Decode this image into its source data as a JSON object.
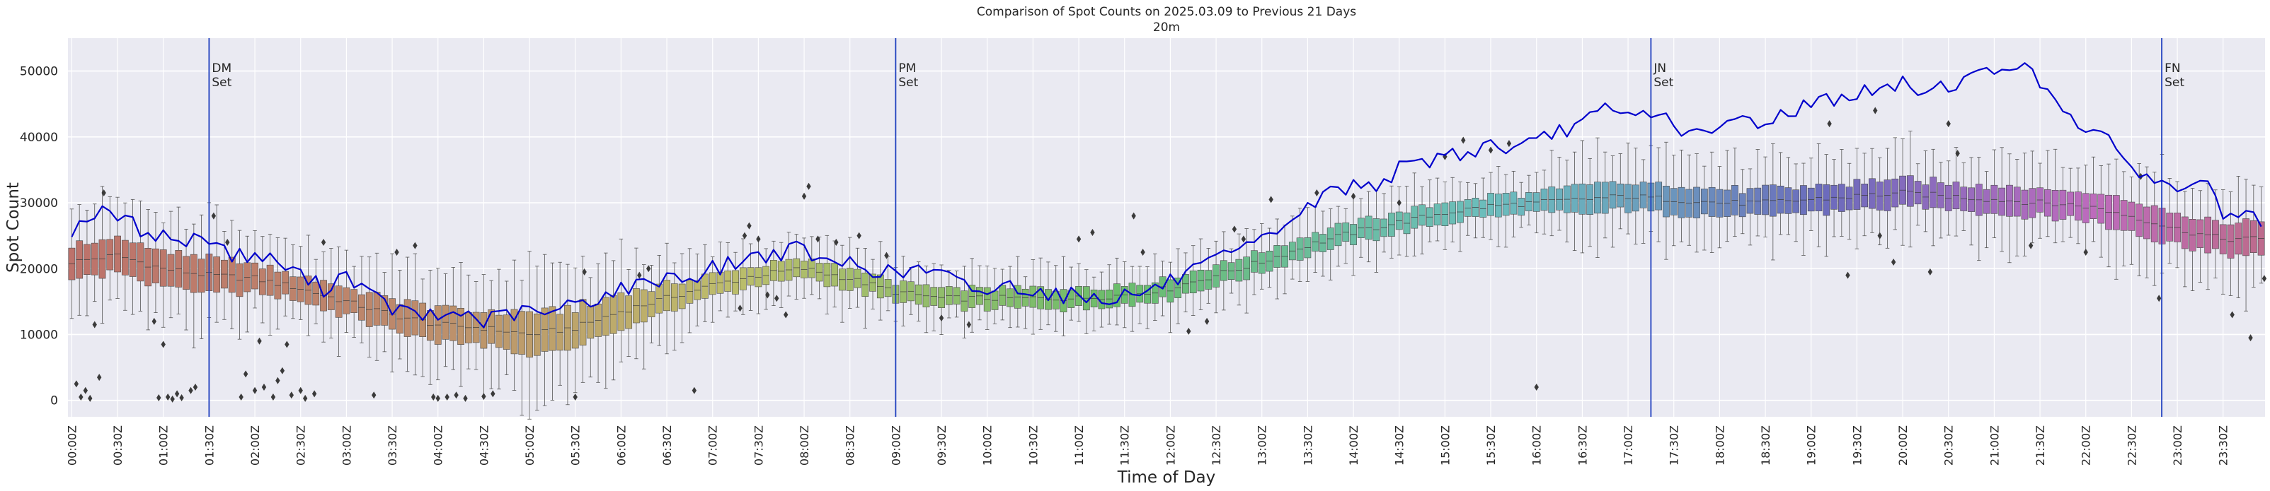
{
  "chart_data": {
    "type": "box",
    "title": "Comparison of Spot Counts on 2025.03.09 to Previous 21 Days",
    "subtitle": "20m",
    "xlabel": "Time of Day",
    "ylabel": "Spot Count",
    "ylim": [
      -2500,
      55000
    ],
    "yticks": [
      0,
      10000,
      20000,
      30000,
      40000,
      50000
    ],
    "grid": true,
    "n_bins": 288,
    "bin_minutes": 5,
    "xtick_every_bins": 6,
    "xtick_labels": [
      "00:00Z",
      "00:30Z",
      "01:00Z",
      "01:30Z",
      "02:00Z",
      "02:30Z",
      "03:00Z",
      "03:30Z",
      "04:00Z",
      "04:30Z",
      "05:00Z",
      "05:30Z",
      "06:00Z",
      "06:30Z",
      "07:00Z",
      "07:30Z",
      "08:00Z",
      "08:30Z",
      "09:00Z",
      "09:30Z",
      "10:00Z",
      "10:30Z",
      "11:00Z",
      "11:30Z",
      "12:00Z",
      "12:30Z",
      "13:00Z",
      "13:30Z",
      "14:00Z",
      "14:30Z",
      "15:00Z",
      "15:30Z",
      "16:00Z",
      "16:30Z",
      "17:00Z",
      "17:30Z",
      "18:00Z",
      "18:30Z",
      "19:00Z",
      "19:30Z",
      "20:00Z",
      "20:30Z",
      "21:00Z",
      "21:30Z",
      "22:00Z",
      "22:30Z",
      "23:00Z",
      "23:30Z"
    ],
    "box_median_profile": {
      "hours": [
        0,
        0.5,
        1,
        1.5,
        2,
        2.5,
        3,
        3.5,
        4,
        4.5,
        5,
        5.5,
        6,
        6.5,
        7,
        7.5,
        8,
        8.5,
        9,
        9.5,
        10,
        10.5,
        11,
        11.5,
        12,
        12.5,
        13,
        13.5,
        14,
        14.5,
        15,
        15.5,
        16,
        16.5,
        17,
        17.5,
        18,
        18.5,
        19,
        19.5,
        20,
        20.5,
        21,
        21.5,
        22,
        22.5,
        23,
        23.5,
        24
      ],
      "median": [
        21000,
        22000,
        20000,
        19000,
        18500,
        17000,
        15000,
        13000,
        11500,
        11000,
        10000,
        11000,
        13500,
        15500,
        17500,
        19000,
        20000,
        18500,
        16500,
        15500,
        15500,
        15500,
        15500,
        16000,
        17000,
        19000,
        21000,
        23500,
        25500,
        27000,
        28500,
        29500,
        30000,
        30500,
        31000,
        30500,
        30000,
        30000,
        30500,
        31000,
        31500,
        31000,
        30500,
        30000,
        29500,
        28000,
        26000,
        24500,
        24500
      ],
      "iqr_halfwidth": [
        2500,
        2500,
        2500,
        2500,
        2000,
        2000,
        2000,
        2500,
        2500,
        2500,
        3000,
        3000,
        2500,
        2000,
        1500,
        1500,
        1500,
        1500,
        1500,
        1500,
        1500,
        1500,
        1500,
        1500,
        1500,
        1500,
        1500,
        1500,
        1500,
        1500,
        1500,
        1500,
        1500,
        2000,
        2000,
        2000,
        2000,
        2000,
        2000,
        2000,
        2000,
        2000,
        2000,
        2000,
        2000,
        2500,
        2500,
        2500,
        2500
      ]
    },
    "current_day_series": {
      "name": "2025.03.09",
      "color": "#0000cc",
      "hours": [
        0,
        0.25,
        0.5,
        0.75,
        1,
        1.25,
        1.5,
        1.75,
        2,
        2.25,
        2.5,
        2.75,
        3,
        3.25,
        3.5,
        3.75,
        4,
        4.25,
        4.5,
        4.75,
        5,
        5.25,
        5.5,
        5.75,
        6,
        6.25,
        6.5,
        6.75,
        7,
        7.25,
        7.5,
        7.75,
        8,
        8.25,
        8.5,
        8.75,
        9,
        9.25,
        9.5,
        9.75,
        10,
        10.25,
        10.5,
        10.75,
        11,
        11.25,
        11.5,
        11.75,
        12,
        12.25,
        12.5,
        12.75,
        13,
        13.25,
        13.5,
        13.75,
        14,
        14.25,
        14.5,
        14.75,
        15,
        15.25,
        15.5,
        15.75,
        16,
        16.25,
        16.5,
        16.75,
        17,
        17.25,
        17.5,
        17.75,
        18,
        18.25,
        18.5,
        18.75,
        19,
        19.25,
        19.5,
        19.75,
        20,
        20.25,
        20.5,
        20.75,
        21,
        21.25,
        21.5,
        21.75,
        22,
        22.25,
        22.5,
        22.75,
        23,
        23.25,
        23.5,
        23.75,
        24
      ],
      "values": [
        26000,
        28500,
        28000,
        26000,
        25000,
        24000,
        25000,
        22000,
        22000,
        21000,
        19000,
        17000,
        19500,
        16000,
        14000,
        13000,
        12500,
        13500,
        12000,
        13000,
        13500,
        13000,
        15000,
        15500,
        17000,
        17500,
        19000,
        18500,
        20000,
        21000,
        22000,
        22500,
        23000,
        20500,
        21000,
        20000,
        19000,
        20000,
        19000,
        17500,
        16500,
        17500,
        17000,
        16000,
        16000,
        15500,
        16000,
        16500,
        18000,
        19500,
        21000,
        22500,
        24000,
        27000,
        29000,
        32000,
        32500,
        33000,
        35000,
        36000,
        37500,
        37500,
        39000,
        38000,
        39000,
        41000,
        42000,
        44000,
        43000,
        44000,
        42000,
        40000,
        41000,
        43000,
        42000,
        44000,
        45000,
        46000,
        46500,
        47000,
        48000,
        47000,
        48000,
        49000,
        50000,
        51500,
        48000,
        45000,
        41000,
        39000,
        36000,
        33000,
        32000,
        34000,
        28500,
        27500,
        27000
      ]
    },
    "vertical_lines": [
      {
        "hour": 1.5,
        "label": "DM\nSet"
      },
      {
        "hour": 9.0,
        "label": "PM\nSet"
      },
      {
        "hour": 17.25,
        "label": "JN\nSet"
      },
      {
        "hour": 22.83,
        "label": "FN\nSet"
      }
    ],
    "outliers": [
      {
        "hour": 0.05,
        "value": 2500
      },
      {
        "hour": 0.1,
        "value": 500
      },
      {
        "hour": 0.15,
        "value": 1500
      },
      {
        "hour": 0.2,
        "value": 300
      },
      {
        "hour": 0.25,
        "value": 11500
      },
      {
        "hour": 0.3,
        "value": 3500
      },
      {
        "hour": 0.35,
        "value": 31500
      },
      {
        "hour": 0.9,
        "value": 12000
      },
      {
        "hour": 0.95,
        "value": 400
      },
      {
        "hour": 1.0,
        "value": 8500
      },
      {
        "hour": 1.05,
        "value": 500
      },
      {
        "hour": 1.1,
        "value": 200
      },
      {
        "hour": 1.15,
        "value": 1000
      },
      {
        "hour": 1.2,
        "value": 400
      },
      {
        "hour": 1.3,
        "value": 1500
      },
      {
        "hour": 1.35,
        "value": 2000
      },
      {
        "hour": 1.55,
        "value": 28000
      },
      {
        "hour": 1.7,
        "value": 24000
      },
      {
        "hour": 1.85,
        "value": 500
      },
      {
        "hour": 1.9,
        "value": 4000
      },
      {
        "hour": 2.0,
        "value": 1500
      },
      {
        "hour": 2.05,
        "value": 9000
      },
      {
        "hour": 2.1,
        "value": 2000
      },
      {
        "hour": 2.2,
        "value": 500
      },
      {
        "hour": 2.25,
        "value": 3000
      },
      {
        "hour": 2.3,
        "value": 4500
      },
      {
        "hour": 2.35,
        "value": 8500
      },
      {
        "hour": 2.4,
        "value": 800
      },
      {
        "hour": 2.5,
        "value": 1500
      },
      {
        "hour": 2.55,
        "value": 300
      },
      {
        "hour": 2.65,
        "value": 1000
      },
      {
        "hour": 2.75,
        "value": 24000
      },
      {
        "hour": 3.3,
        "value": 800
      },
      {
        "hour": 3.55,
        "value": 22500
      },
      {
        "hour": 3.75,
        "value": 23500
      },
      {
        "hour": 3.95,
        "value": 500
      },
      {
        "hour": 4.0,
        "value": 300
      },
      {
        "hour": 4.1,
        "value": 500
      },
      {
        "hour": 4.2,
        "value": 800
      },
      {
        "hour": 4.3,
        "value": 300
      },
      {
        "hour": 4.5,
        "value": 600
      },
      {
        "hour": 4.6,
        "value": 1000
      },
      {
        "hour": 5.5,
        "value": 500
      },
      {
        "hour": 5.6,
        "value": 19500
      },
      {
        "hour": 6.2,
        "value": 19000
      },
      {
        "hour": 6.3,
        "value": 20000
      },
      {
        "hour": 6.8,
        "value": 1500
      },
      {
        "hour": 7.3,
        "value": 14000
      },
      {
        "hour": 7.35,
        "value": 25000
      },
      {
        "hour": 7.4,
        "value": 26500
      },
      {
        "hour": 7.5,
        "value": 24500
      },
      {
        "hour": 7.6,
        "value": 16000
      },
      {
        "hour": 7.7,
        "value": 15500
      },
      {
        "hour": 7.8,
        "value": 13000
      },
      {
        "hour": 8.0,
        "value": 31000
      },
      {
        "hour": 8.05,
        "value": 32500
      },
      {
        "hour": 8.15,
        "value": 24500
      },
      {
        "hour": 8.35,
        "value": 24000
      },
      {
        "hour": 8.6,
        "value": 25000
      },
      {
        "hour": 8.9,
        "value": 22000
      },
      {
        "hour": 9.5,
        "value": 12500
      },
      {
        "hour": 9.8,
        "value": 11500
      },
      {
        "hour": 11.0,
        "value": 24500
      },
      {
        "hour": 11.15,
        "value": 25500
      },
      {
        "hour": 11.6,
        "value": 28000
      },
      {
        "hour": 11.7,
        "value": 22500
      },
      {
        "hour": 12.2,
        "value": 10500
      },
      {
        "hour": 12.4,
        "value": 12000
      },
      {
        "hour": 12.7,
        "value": 26000
      },
      {
        "hour": 12.8,
        "value": 24500
      },
      {
        "hour": 13.1,
        "value": 30500
      },
      {
        "hour": 13.6,
        "value": 31500
      },
      {
        "hour": 14.0,
        "value": 31000
      },
      {
        "hour": 14.5,
        "value": 30000
      },
      {
        "hour": 15.0,
        "value": 37000
      },
      {
        "hour": 15.2,
        "value": 39500
      },
      {
        "hour": 15.5,
        "value": 38000
      },
      {
        "hour": 15.7,
        "value": 39000
      },
      {
        "hour": 16.0,
        "value": 2000
      },
      {
        "hour": 19.2,
        "value": 42000
      },
      {
        "hour": 19.4,
        "value": 19000
      },
      {
        "hour": 19.7,
        "value": 44000
      },
      {
        "hour": 19.75,
        "value": 25000
      },
      {
        "hour": 19.9,
        "value": 21000
      },
      {
        "hour": 20.3,
        "value": 19500
      },
      {
        "hour": 20.5,
        "value": 42000
      },
      {
        "hour": 20.6,
        "value": 37500
      },
      {
        "hour": 21.4,
        "value": 23500
      },
      {
        "hour": 22.0,
        "value": 22500
      },
      {
        "hour": 22.6,
        "value": 34000
      },
      {
        "hour": 22.8,
        "value": 15500
      },
      {
        "hour": 23.6,
        "value": 13000
      },
      {
        "hour": 23.8,
        "value": 9500
      },
      {
        "hour": 23.95,
        "value": 18500
      }
    ]
  }
}
